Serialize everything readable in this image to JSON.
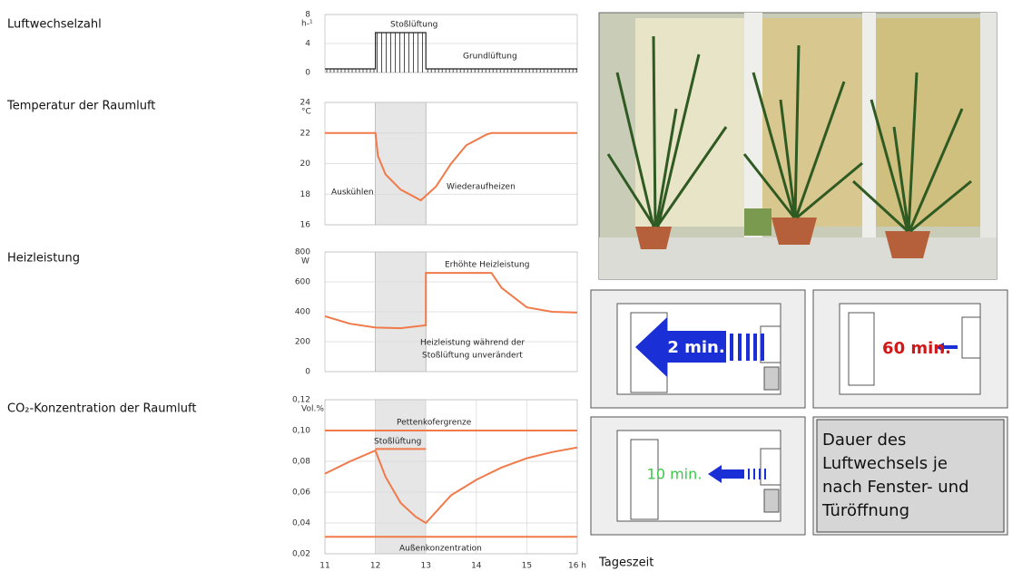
{
  "chart_data": [
    {
      "type": "line",
      "title": "Luftwechselzahl",
      "y_unit": "h-¹",
      "xlim": [
        11,
        16
      ],
      "ylim": [
        0,
        8
      ],
      "yticks": [
        0,
        4,
        8
      ],
      "hatch": true,
      "series": [
        {
          "color": "#222222",
          "x": [
            11,
            12,
            12,
            13,
            13,
            16
          ],
          "values": [
            0.5,
            0.5,
            5.5,
            5.5,
            0.5,
            0.5
          ]
        }
      ],
      "annotations": [
        "Stoßlüftung",
        "Grundlüftung"
      ]
    },
    {
      "type": "line",
      "title": "Temperatur der Raumluft",
      "y_unit": "°C",
      "xlim": [
        11,
        16
      ],
      "ylim": [
        16,
        24
      ],
      "yticks": [
        16,
        18,
        20,
        22,
        24
      ],
      "highlight": [
        12,
        13
      ],
      "series": [
        {
          "color": "#f07a4a",
          "x": [
            11,
            12,
            12.05,
            12.2,
            12.5,
            12.9,
            13.2,
            13.5,
            13.8,
            14.2,
            14.3,
            16
          ],
          "values": [
            22,
            22,
            20.5,
            19.3,
            18.3,
            17.6,
            18.5,
            20,
            21.2,
            21.9,
            22,
            22
          ]
        }
      ],
      "annotations": [
        "Auskühlen",
        "Wiederaufheizen"
      ]
    },
    {
      "type": "line",
      "title": "Heizleistung",
      "y_unit": "W",
      "xlim": [
        11,
        16
      ],
      "ylim": [
        0,
        800
      ],
      "yticks": [
        0,
        200,
        400,
        600,
        800
      ],
      "highlight": [
        12,
        13
      ],
      "series": [
        {
          "color": "#f07a4a",
          "x": [
            11,
            11.5,
            12,
            12.5,
            13,
            13,
            14.3,
            14.5,
            15,
            15.5,
            16
          ],
          "values": [
            370,
            320,
            295,
            290,
            310,
            660,
            660,
            560,
            430,
            400,
            395
          ]
        }
      ],
      "annotations": [
        "Erhöhte Heizleistung",
        "Heizleistung während der",
        "Stoßlüftung unverändert"
      ]
    },
    {
      "type": "line",
      "title": "CO₂-Konzentration der Raumluft",
      "y_unit": "Vol.%",
      "xlim": [
        11,
        16
      ],
      "ylim": [
        0.02,
        0.12
      ],
      "yticks": [
        {
          "value": 0.02,
          "label": "0,02"
        },
        {
          "value": 0.04,
          "label": "0,04"
        },
        {
          "value": 0.06,
          "label": "0,06"
        },
        {
          "value": 0.08,
          "label": "0,08"
        },
        {
          "value": 0.1,
          "label": "0,10"
        },
        {
          "value": 0.12,
          "label": "0,12"
        }
      ],
      "xticks": [
        11,
        12,
        13,
        14,
        15,
        {
          "value": 16,
          "label": "16 h"
        }
      ],
      "x_label": "Tageszeit",
      "highlight": [
        12,
        13
      ],
      "series": [
        {
          "color": "#f07a4a",
          "x": [
            11,
            16
          ],
          "values": [
            0.1,
            0.1
          ]
        },
        {
          "color": "#f07a4a",
          "x": [
            11,
            16
          ],
          "values": [
            0.031,
            0.031
          ]
        },
        {
          "color": "#f07a4a",
          "x": [
            12,
            13
          ],
          "values": [
            0.088,
            0.088
          ]
        },
        {
          "color": "#f07a4a",
          "x": [
            11,
            11.5,
            12,
            12.2,
            12.5,
            12.8,
            13,
            13.5,
            14,
            14.5,
            15,
            15.5,
            16
          ],
          "values": [
            0.072,
            0.08,
            0.087,
            0.07,
            0.053,
            0.044,
            0.04,
            0.058,
            0.068,
            0.076,
            0.082,
            0.086,
            0.089
          ]
        }
      ],
      "annotations": [
        "Pettenkofergrenze",
        "Stoßlüftung",
        "Außenkonzentration"
      ]
    }
  ],
  "diagrams": [
    "2 min.",
    "60 min.",
    "10 min."
  ],
  "caption": [
    "Dauer des",
    "Luftwechsels je",
    "nach Fenster- und",
    "Türöffnung"
  ]
}
